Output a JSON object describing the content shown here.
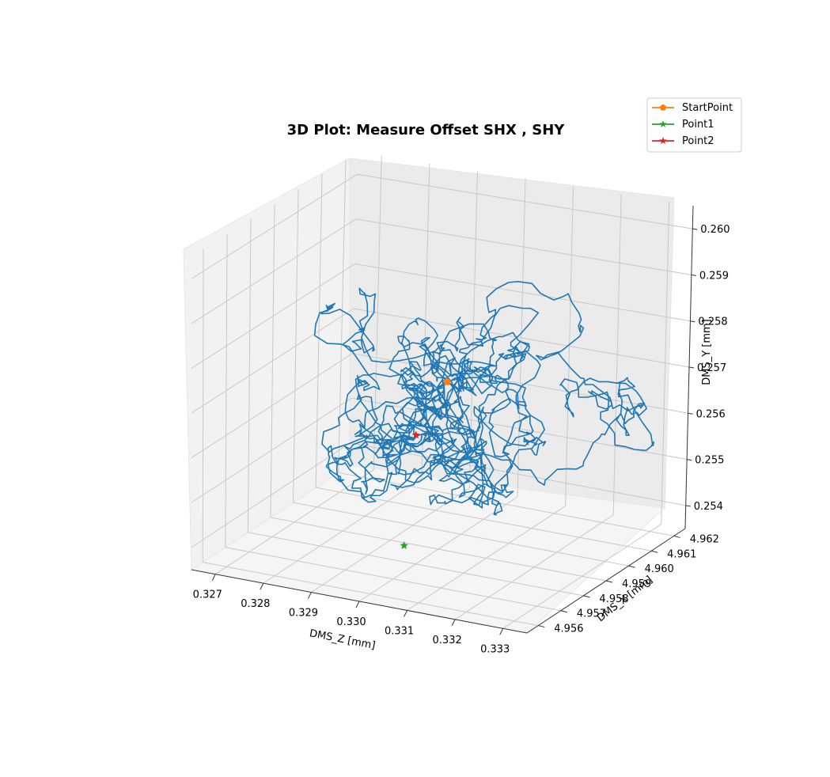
{
  "chart_data": {
    "type": "line",
    "projection": "3d",
    "title": "3D Plot: Measure Offset SHX , SHY",
    "axes": {
      "x_label": "DMS_Z [mm]",
      "y_label": "DMS_X [mm]",
      "z_label": "DMS_Y [mm]",
      "x_ticks": [
        "0.327",
        "0.328",
        "0.329",
        "0.330",
        "0.331",
        "0.332",
        "0.333"
      ],
      "y_ticks": [
        "4.956",
        "4.957",
        "4.958",
        "4.959",
        "4.960",
        "4.961",
        "4.962"
      ],
      "z_ticks": [
        "0.254",
        "0.255",
        "0.256",
        "0.257",
        "0.258",
        "0.259",
        "0.260"
      ],
      "x_range": [
        0.3265,
        0.3335
      ],
      "y_range": [
        4.9555,
        4.9625
      ],
      "z_range": [
        0.2535,
        0.2605
      ]
    },
    "grid": true,
    "legend": {
      "position": "top-right",
      "entries": [
        {
          "label": "StartPoint",
          "color": "#ff7f0e",
          "marker": "pentagon"
        },
        {
          "label": "Point1",
          "color": "#2ca02c",
          "marker": "star"
        },
        {
          "label": "Point2",
          "color": "#d62728",
          "marker": "star"
        }
      ]
    },
    "trajectory": {
      "color": "#1f77b4",
      "description_points": 1500
    },
    "markers": {
      "start_point": {
        "x": 0.3299,
        "y": 4.9595,
        "z": 0.257
      },
      "point1": {
        "x": 0.3298,
        "y": 4.9579,
        "z": 0.2539
      },
      "point2": {
        "x": 0.3296,
        "y": 4.9588,
        "z": 0.256
      }
    }
  }
}
